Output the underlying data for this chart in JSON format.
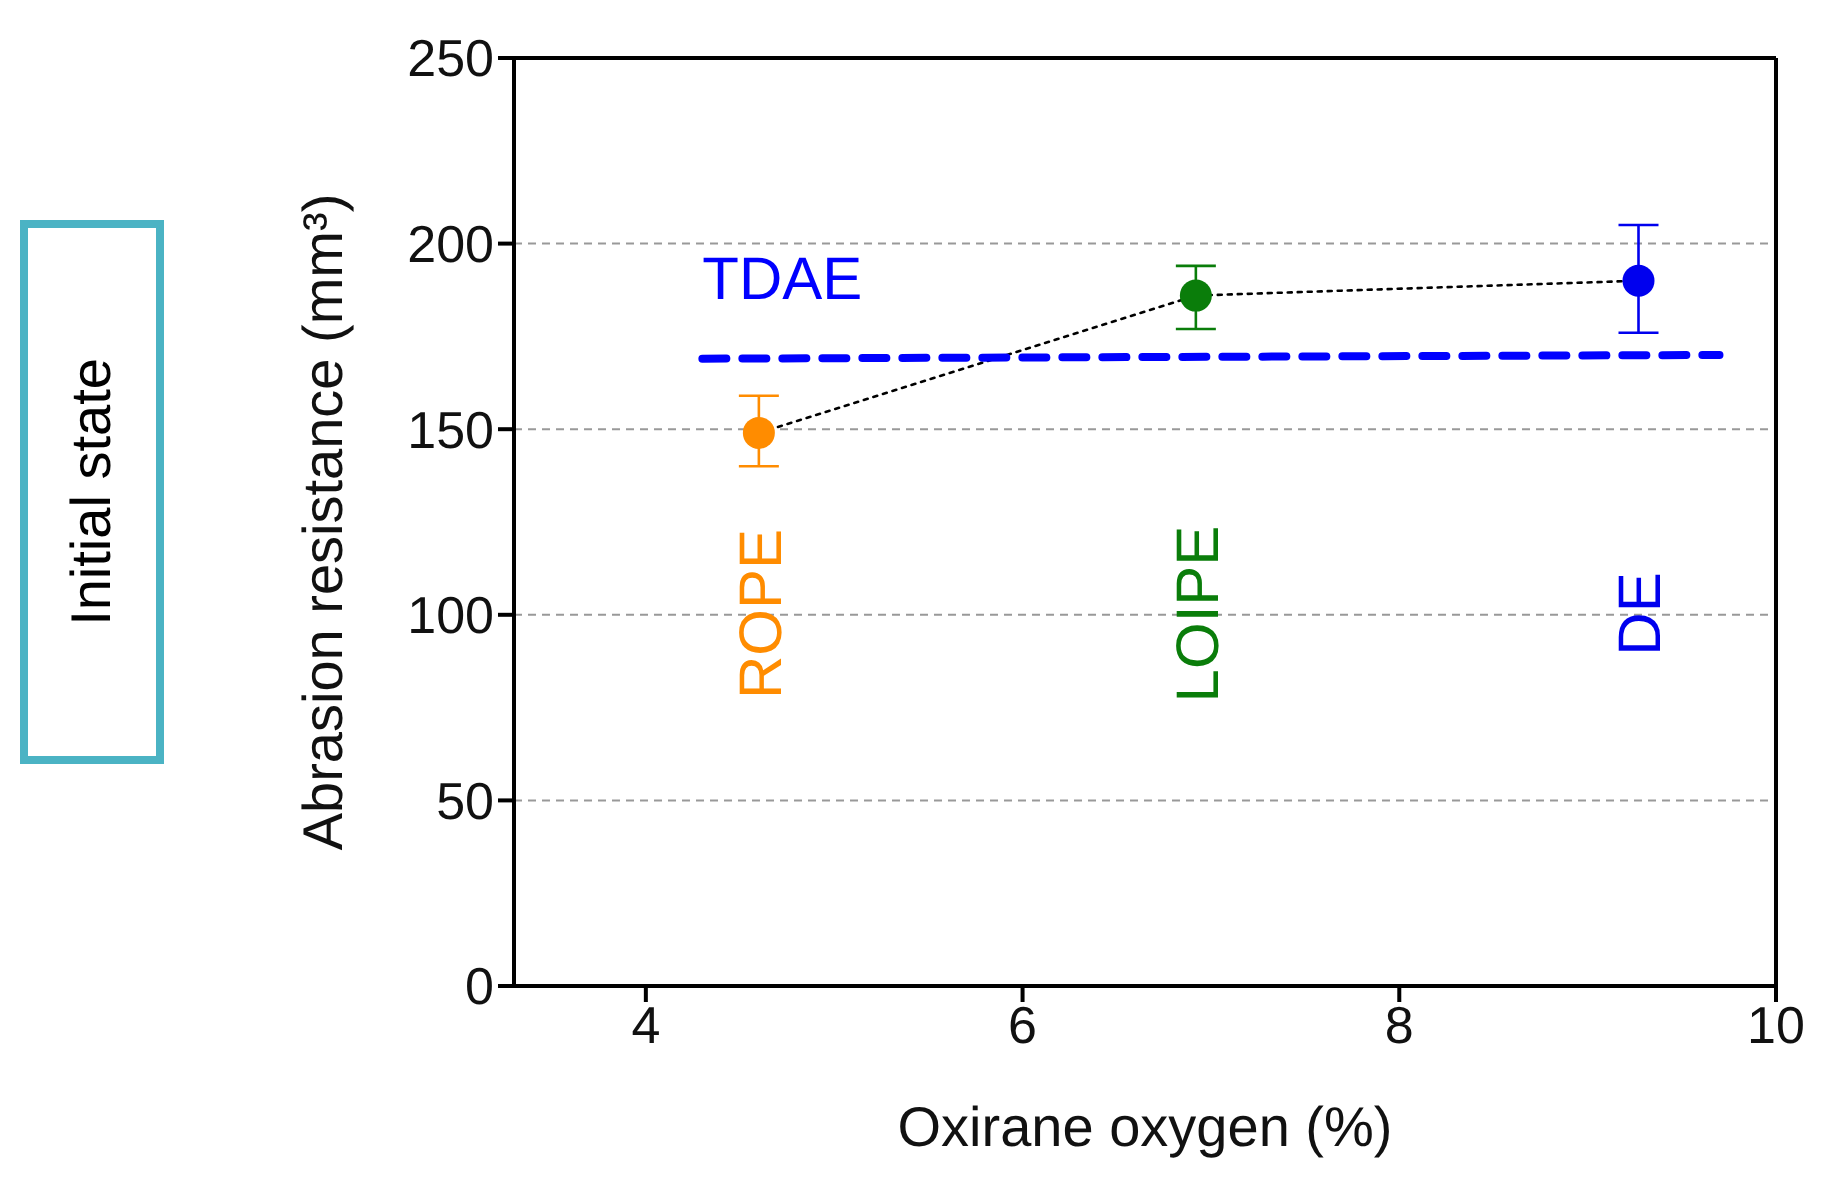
{
  "chart_data": {
    "type": "scatter",
    "xlabel": "Oxirane oxygen (%)",
    "ylabel": "Abrasion resistance (mm³)",
    "xlim": [
      3.3,
      10
    ],
    "xticks": [
      4,
      6,
      8,
      10
    ],
    "ylim": [
      0,
      250
    ],
    "yticks": [
      0,
      50,
      100,
      150,
      200,
      250
    ],
    "grid": "y",
    "legend": false,
    "annotations": [
      "Initial state"
    ],
    "series": [
      {
        "type": "line",
        "x": [
          4.6,
          6.92,
          9.27
        ],
        "values": [
          149,
          186,
          190
        ],
        "color": "#000000",
        "line_style": "dotted",
        "marker": "none"
      },
      {
        "type": "line",
        "name": "TDAE",
        "x": [
          4.3,
          9.7
        ],
        "values": [
          169,
          170
        ],
        "color": "#0000ff",
        "line_style": "dashed",
        "marker": "none"
      },
      {
        "name": "ROPE",
        "x": [
          4.6
        ],
        "values": [
          149
        ],
        "errors": [
          [
            140,
            159
          ]
        ],
        "color": "#ff8c00",
        "marker": "circle"
      },
      {
        "name": "LOIPE",
        "x": [
          6.92
        ],
        "values": [
          186
        ],
        "errors": [
          [
            177,
            194
          ]
        ],
        "color": "#0a7d0a",
        "marker": "circle"
      },
      {
        "name": "DE",
        "x": [
          9.27
        ],
        "values": [
          190
        ],
        "errors": [
          [
            176,
            205
          ]
        ],
        "color": "#0000ee",
        "marker": "circle"
      }
    ]
  }
}
